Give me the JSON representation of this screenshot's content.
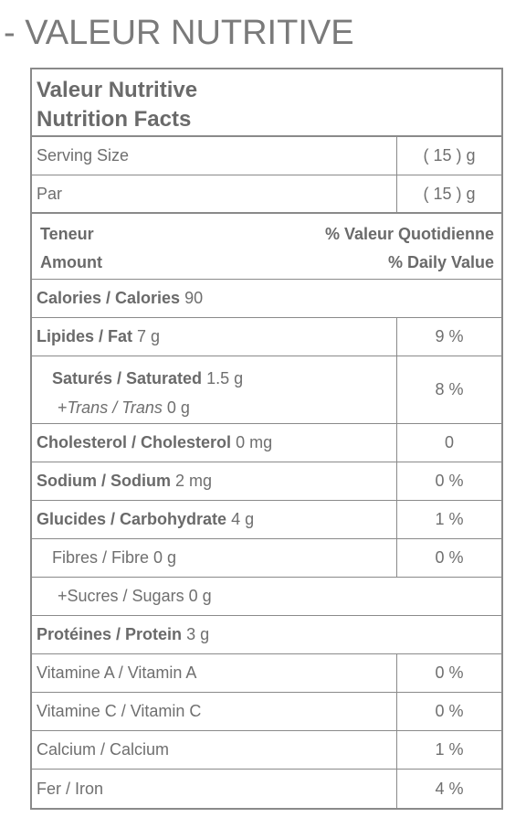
{
  "heading": "- VALEUR NUTRITIVE",
  "title": {
    "fr": "Valeur Nutritive",
    "en": "Nutrition Facts"
  },
  "serving": {
    "label": "Serving Size",
    "value": "( 15 ) g"
  },
  "per": {
    "label": "Par",
    "value": "( 15 ) g"
  },
  "header": {
    "amount_fr": "Teneur",
    "amount_en": "Amount",
    "dv_fr": "% Valeur Quotidienne",
    "dv_en": "% Daily Value"
  },
  "calories": {
    "label": "Calories / Calories",
    "amount": "90"
  },
  "fat": {
    "label": "Lipides / Fat",
    "amount": "7 g",
    "dv": "9 %"
  },
  "saturated": {
    "label": "Saturés / Saturated",
    "amount": "1.5 g",
    "trans_prefix": "+",
    "trans_label": "Trans / Trans",
    "trans_amount": "0 g",
    "dv": "8 %"
  },
  "cholesterol": {
    "label": "Cholesterol / Cholesterol",
    "amount": "0 mg",
    "dv": "0"
  },
  "sodium": {
    "label": "Sodium / Sodium",
    "amount": "2 mg",
    "dv": "0 %"
  },
  "carbohydrate": {
    "label": "Glucides / Carbohydrate",
    "amount": "4 g",
    "dv": "1 %"
  },
  "fibre": {
    "text": "Fibres / Fibre 0 g",
    "dv": "0 %"
  },
  "sugars": {
    "text": "+Sucres / Sugars 0 g"
  },
  "protein": {
    "label": "Protéines / Protein",
    "amount": "3 g"
  },
  "vitamin_a": {
    "label": "Vitamine A / Vitamin A",
    "dv": "0 %"
  },
  "vitamin_c": {
    "label": "Vitamine C / Vitamin C",
    "dv": "0 %"
  },
  "calcium": {
    "label": "Calcium / Calcium",
    "dv": "1 %"
  },
  "iron": {
    "label": "Fer / Iron",
    "dv": "4 %"
  }
}
